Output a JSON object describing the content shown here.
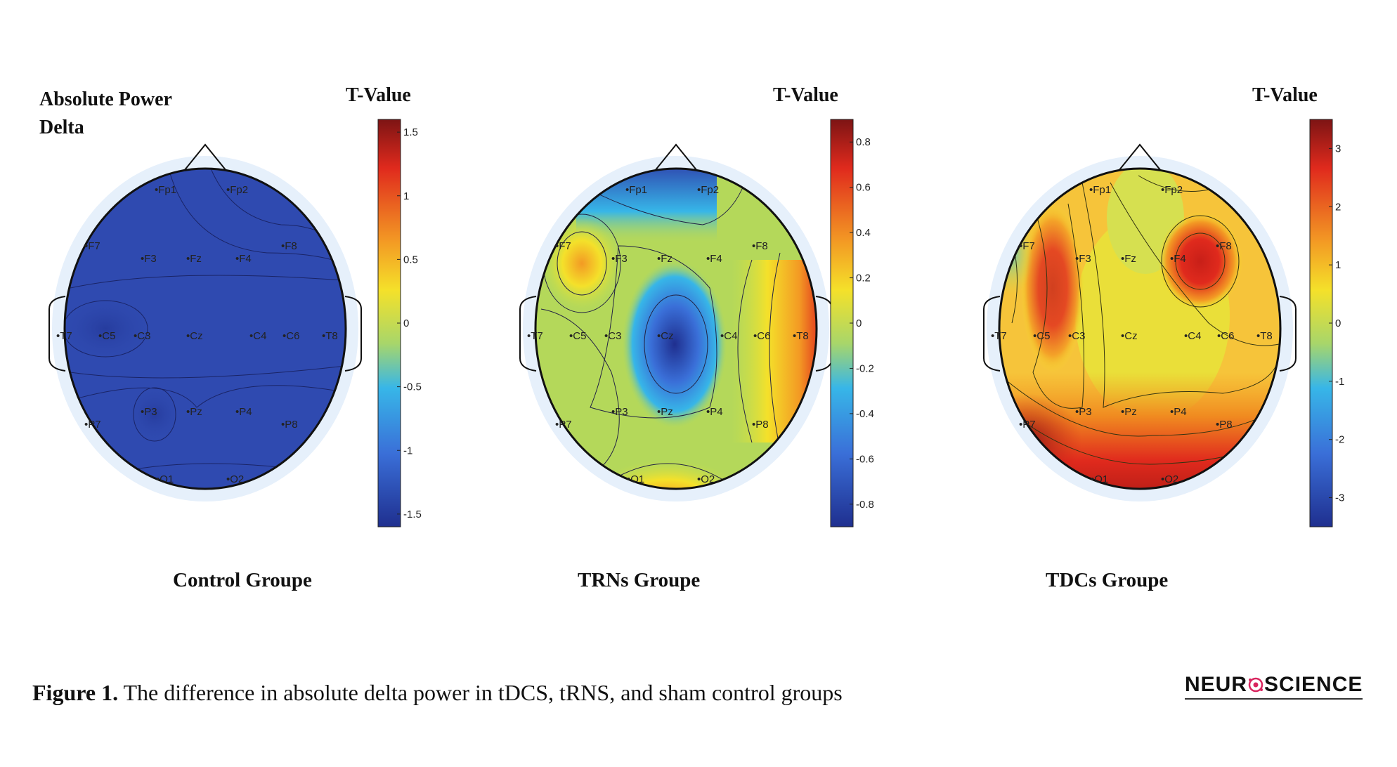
{
  "figure": {
    "top_left_title_line1": "Absolute Power",
    "top_left_title_line2": "Delta",
    "caption_label": "Figure 1.",
    "caption_text": " The difference in absolute delta power in tDCS, tRNS, and sham control groups",
    "logo_left": "NEUR",
    "logo_right": "SCIENCE"
  },
  "electrodes": [
    "Fp1",
    "Fp2",
    "F7",
    "F3",
    "Fz",
    "F4",
    "F8",
    "T7",
    "C5",
    "C3",
    "Cz",
    "C4",
    "C6",
    "T8",
    "P7",
    "P3",
    "Pz",
    "P4",
    "P8",
    "O1",
    "O2"
  ],
  "panels": [
    {
      "group": "Control Groupe",
      "colorbar_title": "T-Value",
      "ticks": [
        "1.5",
        "1",
        "0.5",
        "0",
        "-0.5",
        "-1",
        "-1.5"
      ],
      "range": [
        -1.6,
        1.6
      ]
    },
    {
      "group": "TRNs Groupe",
      "colorbar_title": "T-Value",
      "ticks": [
        "0.8",
        "0.6",
        "0.4",
        "0.2",
        "0",
        "-0.2",
        "-0.4",
        "-0.6",
        "-0.8"
      ],
      "range": [
        -0.9,
        0.9
      ]
    },
    {
      "group": "TDCs Groupe",
      "colorbar_title": "T-Value",
      "ticks": [
        "3",
        "2",
        "1",
        "0",
        "-1",
        "-2",
        "-3"
      ],
      "range": [
        -3.5,
        3.5
      ]
    }
  ],
  "colors": {
    "jet_dark_blue": "#1f2f8f",
    "jet_blue": "#3a6fd8",
    "jet_cyan": "#37b6e8",
    "jet_green": "#a8d66a",
    "jet_yellow": "#f4e12a",
    "jet_orange": "#f39a24",
    "jet_red": "#e02a1d",
    "jet_dark_red": "#7d1414",
    "head_halo": "#e6f0fb"
  }
}
